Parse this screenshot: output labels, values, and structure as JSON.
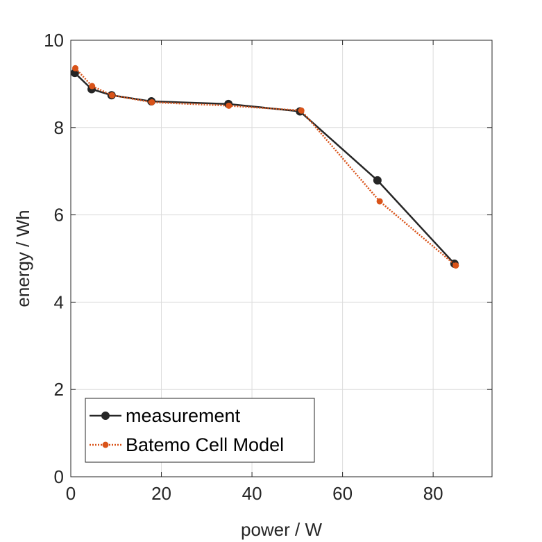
{
  "chart_data": {
    "type": "line",
    "title": "",
    "xlabel": "power / W",
    "ylabel": "energy / Wh",
    "xlim": [
      0,
      93
    ],
    "ylim": [
      0,
      10
    ],
    "xticks": [
      0,
      20,
      40,
      60,
      80
    ],
    "yticks": [
      0,
      2,
      4,
      6,
      8,
      10
    ],
    "xtick_labels": [
      "0",
      "20",
      "40",
      "60",
      "80"
    ],
    "ytick_labels": [
      "0",
      "2",
      "4",
      "6",
      "8",
      "10"
    ],
    "grid": true,
    "legend_position": "bottom-left",
    "series": [
      {
        "name": "measurement",
        "color": "#262626",
        "line_style": "solid",
        "marker": "circle-large",
        "x": [
          0.9,
          4.6,
          9.0,
          17.8,
          34.8,
          50.6,
          67.7,
          84.7
        ],
        "y": [
          9.25,
          8.88,
          8.74,
          8.6,
          8.54,
          8.37,
          6.79,
          4.88
        ]
      },
      {
        "name": "Batemo Cell Model",
        "color": "#d95319",
        "line_style": "dotted",
        "marker": "circle-small",
        "x": [
          1.0,
          4.7,
          9.1,
          17.9,
          34.9,
          50.9,
          68.2,
          85.0
        ],
        "y": [
          9.36,
          8.95,
          8.74,
          8.58,
          8.5,
          8.39,
          6.31,
          4.84
        ]
      }
    ]
  }
}
